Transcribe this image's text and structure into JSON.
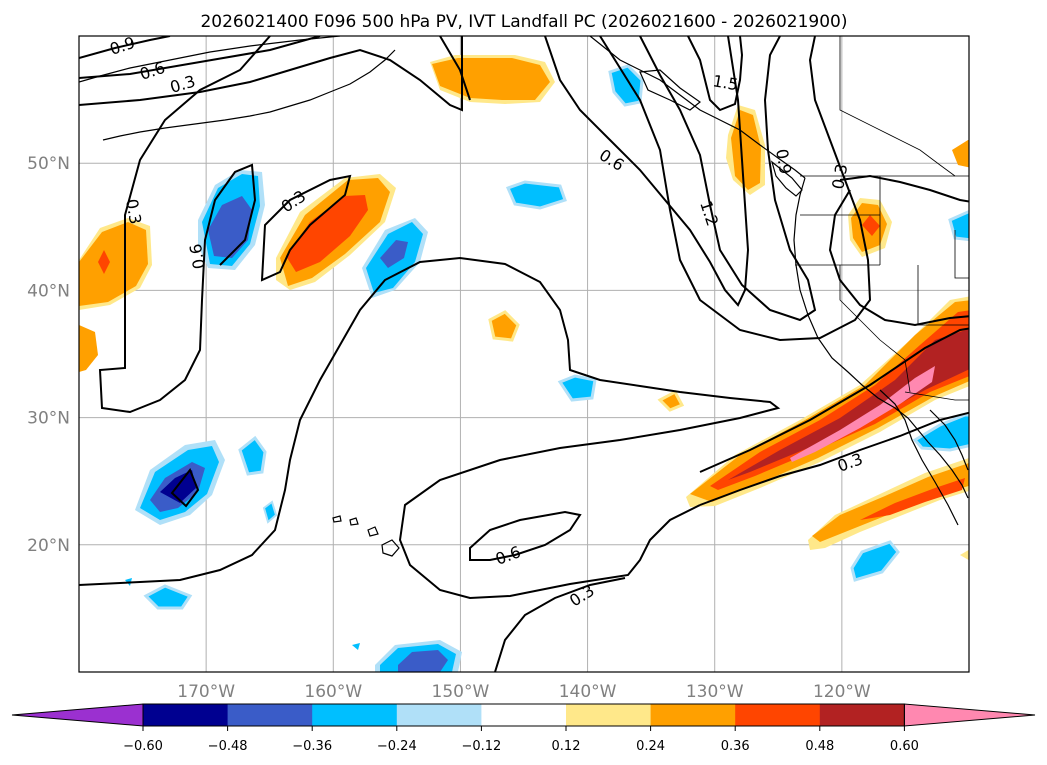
{
  "figure": {
    "title": "2026021400 F096 500 hPa PV, IVT Landfall PC (2026021600 - 2026021900)"
  },
  "map": {
    "extent": {
      "lon": [
        -180,
        -110
      ],
      "lat": [
        10,
        60
      ]
    },
    "gridlines": true,
    "lon_ticks": [
      {
        "lon": -170,
        "label": "170°W"
      },
      {
        "lon": -160,
        "label": "160°W"
      },
      {
        "lon": -150,
        "label": "150°W"
      },
      {
        "lon": -140,
        "label": "140°W"
      },
      {
        "lon": -130,
        "label": "130°W"
      },
      {
        "lon": -120,
        "label": "120°W"
      }
    ],
    "lat_ticks": [
      {
        "lat": 50,
        "label": "50°N"
      },
      {
        "lat": 40,
        "label": "40°N"
      },
      {
        "lat": 30,
        "label": "30°N"
      },
      {
        "lat": 20,
        "label": "20°N"
      }
    ],
    "contour_labels": [
      "0.9",
      "0.6",
      "0.3",
      "1.5",
      "0.6",
      "1.2",
      "0.9",
      "0.3",
      "0.3",
      "0.3",
      "0.6",
      "0.6",
      "0.3",
      "0.3"
    ]
  },
  "colorbar": {
    "ticks": [
      "−0.60",
      "−0.48",
      "−0.36",
      "−0.24",
      "−0.12",
      "0.12",
      "0.24",
      "0.36",
      "0.48",
      "0.60"
    ],
    "colors": [
      "#9b30d0",
      "#000090",
      "#3a5cc8",
      "#00bfff",
      "#b0e0f8",
      "#ffffff",
      "#ffe88a",
      "#ffa000",
      "#ff4500",
      "#b22222",
      "#ff88b0"
    ]
  }
}
